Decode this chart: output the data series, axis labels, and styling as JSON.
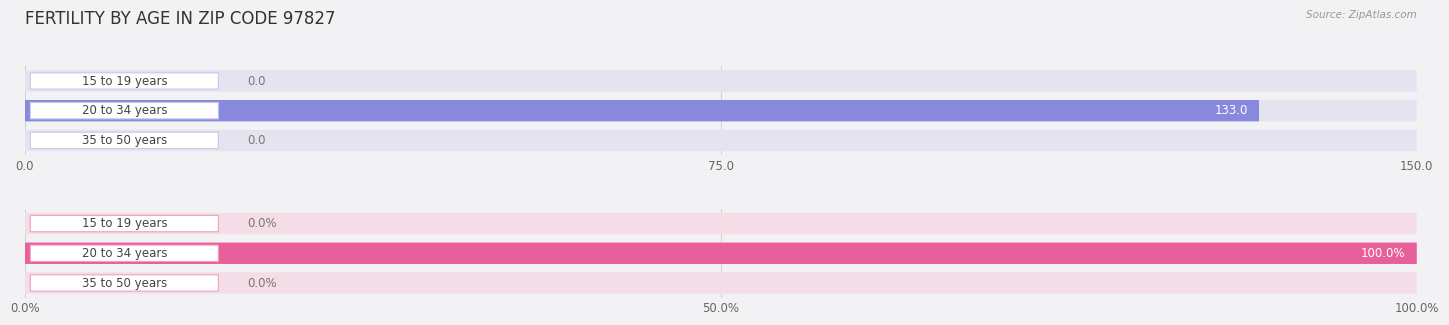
{
  "title": "FERTILITY BY AGE IN ZIP CODE 97827",
  "source": "Source: ZipAtlas.com",
  "top_chart": {
    "categories": [
      "15 to 19 years",
      "20 to 34 years",
      "35 to 50 years"
    ],
    "values": [
      0.0,
      133.0,
      0.0
    ],
    "xlim": [
      0,
      150
    ],
    "xticks": [
      0.0,
      75.0,
      150.0
    ],
    "bar_color": "#8888dd",
    "bar_bg_color": "#e4e4f0",
    "pill_color": "#c8c8e8",
    "label_inside_color": "#ffffff",
    "label_outside_color": "#777777"
  },
  "bottom_chart": {
    "categories": [
      "15 to 19 years",
      "20 to 34 years",
      "35 to 50 years"
    ],
    "values": [
      0.0,
      100.0,
      0.0
    ],
    "xlim": [
      0,
      100
    ],
    "xticks": [
      0.0,
      50.0,
      100.0
    ],
    "xtick_labels": [
      "0.0%",
      "50.0%",
      "100.0%"
    ],
    "bar_color": "#e8609a",
    "bar_bg_color": "#f5dde8",
    "pill_color": "#f0a0c0",
    "label_inside_color": "#ffffff",
    "label_outside_color": "#777777"
  },
  "bg_color": "#f2f2f5",
  "row_bg_color": "#eaeaee",
  "label_fontsize": 8.5,
  "tick_fontsize": 8.5,
  "title_fontsize": 12,
  "source_fontsize": 7.5,
  "cat_fontsize": 8.5
}
